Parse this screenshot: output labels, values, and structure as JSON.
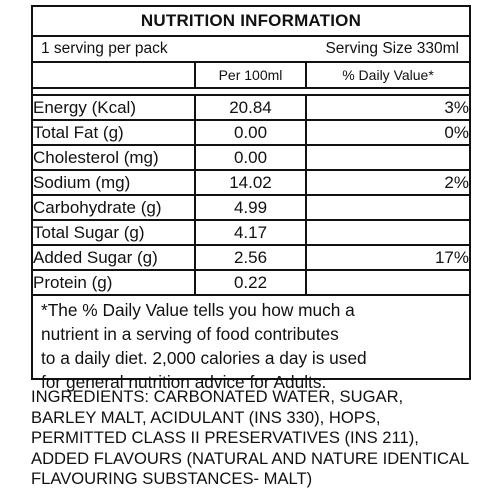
{
  "panel": {
    "title": "NUTRITION INFORMATION",
    "serving_per_pack": "1 serving per pack",
    "serving_size": "Serving Size 330ml",
    "headers": {
      "per": "Per 100ml",
      "dv": "% Daily Value*"
    },
    "rows": [
      {
        "name": "Energy (Kcal)",
        "per": "20.84",
        "dv": "3%"
      },
      {
        "name": "Total Fat (g)",
        "per": "0.00",
        "dv": "0%"
      },
      {
        "name": "Cholesterol (mg)",
        "per": "0.00",
        "dv": ""
      },
      {
        "name": "Sodium (mg)",
        "per": "14.02",
        "dv": "2%"
      },
      {
        "name": "Carbohydrate (g)",
        "per": "4.99",
        "dv": ""
      },
      {
        "name": "Total Sugar (g)",
        "per": "4.17",
        "dv": ""
      },
      {
        "name": "Added Sugar (g)",
        "per": "2.56",
        "dv": "17%"
      },
      {
        "name": "Protein (g)",
        "per": "0.22",
        "dv": ""
      }
    ],
    "footnote": [
      "*The % Daily Value tells you how much a",
      "nutrient in a serving of food contributes",
      "to a daily diet. 2,000 calories a day is used",
      "for general nutrition advice for Adults."
    ]
  },
  "ingredients": [
    "INGREDIENTS: CARBONATED WATER, SUGAR,",
    "BARLEY MALT, ACIDULANT (INS 330), HOPS,",
    "PERMITTED CLASS II PRESERVATIVES (INS 211),",
    "ADDED FLAVOURS (NATURAL AND NATURE IDENTICAL",
    "FLAVOURING SUBSTANCES- MALT)"
  ]
}
